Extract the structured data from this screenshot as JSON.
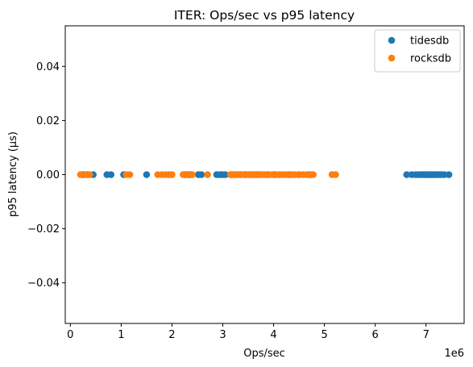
{
  "chart_data": {
    "type": "scatter",
    "title": "ITER: Ops/sec vs p95 latency",
    "xlabel": "Ops/sec",
    "ylabel": "p95 latency (µs)",
    "x_offset_label": "1e6",
    "xlim": [
      -0.1,
      7.75
    ],
    "ylim": [
      -0.055,
      0.055
    ],
    "x_ticks": [
      0,
      1,
      2,
      3,
      4,
      5,
      6,
      7
    ],
    "x_tick_labels": [
      "0",
      "1",
      "2",
      "3",
      "4",
      "5",
      "6",
      "7"
    ],
    "y_ticks": [
      -0.04,
      -0.02,
      0.0,
      0.02,
      0.04
    ],
    "y_tick_labels": [
      "−0.04",
      "−0.02",
      "0.00",
      "0.02",
      "0.04"
    ],
    "grid": false,
    "legend_position": "top-right",
    "series": [
      {
        "name": "tidesdb",
        "color": "#1f77b4",
        "x": [
          0.26,
          0.34,
          0.45,
          0.72,
          0.8,
          1.05,
          1.5,
          2.25,
          2.32,
          2.38,
          2.52,
          2.58,
          2.88,
          2.94,
          2.99,
          3.05,
          3.18,
          3.25,
          3.35,
          3.45,
          3.52,
          3.6,
          3.68,
          3.75,
          3.88,
          4.02,
          4.12,
          4.3,
          4.5,
          4.72,
          6.62,
          6.72,
          6.8,
          6.86,
          6.9,
          6.94,
          6.98,
          7.01,
          7.04,
          7.07,
          7.1,
          7.13,
          7.16,
          7.2,
          7.25,
          7.3,
          7.36,
          7.45
        ],
        "y": [
          0,
          0,
          0,
          0,
          0,
          0,
          0,
          0,
          0,
          0,
          0,
          0,
          0,
          0,
          0,
          0,
          0,
          0,
          0,
          0,
          0,
          0,
          0,
          0,
          0,
          0,
          0,
          0,
          0,
          0,
          0,
          0,
          0,
          0,
          0,
          0,
          0,
          0,
          0,
          0,
          0,
          0,
          0,
          0,
          0,
          0,
          0,
          0
        ]
      },
      {
        "name": "rocksdb",
        "color": "#ff7f0e",
        "x": [
          0.2,
          0.3,
          0.38,
          1.1,
          1.17,
          1.72,
          1.8,
          1.87,
          1.94,
          2.0,
          2.22,
          2.3,
          2.4,
          2.7,
          3.15,
          3.22,
          3.28,
          3.32,
          3.37,
          3.42,
          3.46,
          3.5,
          3.54,
          3.58,
          3.62,
          3.66,
          3.7,
          3.76,
          3.82,
          3.9,
          3.97,
          4.05,
          4.12,
          4.18,
          4.24,
          4.3,
          4.36,
          4.42,
          4.5,
          4.58,
          4.65,
          4.7,
          4.78,
          5.15,
          5.22
        ],
        "y": [
          0,
          0,
          0,
          0,
          0,
          0,
          0,
          0,
          0,
          0,
          0,
          0,
          0,
          0,
          0,
          0,
          0,
          0,
          0,
          0,
          0,
          0,
          0,
          0,
          0,
          0,
          0,
          0,
          0,
          0,
          0,
          0,
          0,
          0,
          0,
          0,
          0,
          0,
          0,
          0,
          0,
          0,
          0,
          0,
          0
        ]
      }
    ]
  }
}
